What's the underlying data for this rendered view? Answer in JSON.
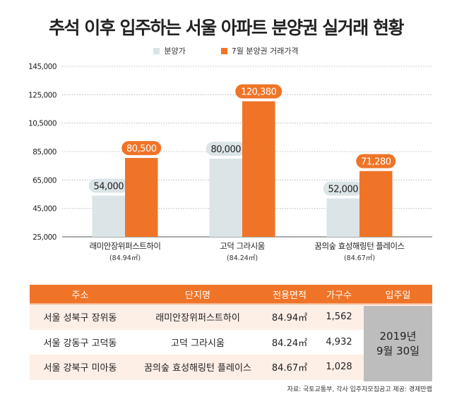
{
  "title": "추석 이후 입주하는 서울 아파트 분양권 실거래 현황",
  "chart_data": {
    "type": "bar",
    "title": "추석 이후 입주하는 서울 아파트 분양권 실거래 현황",
    "categories": [
      "래미안장위퍼스트하이",
      "고덕 그라시움",
      "꿈의숲 효성해링턴 플레이스"
    ],
    "category_sub": [
      "(84.94㎡)",
      "(84.24㎡)",
      "(84.67㎡)"
    ],
    "series": [
      {
        "name": "분양가",
        "values": [
          54000,
          80000,
          52000
        ],
        "labels": [
          "54,000",
          "80,000",
          "52,000"
        ],
        "color": "#dbe4e6"
      },
      {
        "name": "7월 분양권 거래가격",
        "values": [
          80500,
          120380,
          71280
        ],
        "labels": [
          "80,500",
          "120,380",
          "71,280"
        ],
        "color": "#f07427"
      }
    ],
    "yticks": [
      25000,
      45000,
      65000,
      85000,
      105000,
      125000,
      145000
    ],
    "ytick_labels": [
      "25,000",
      "45,000",
      "65,000",
      "85,000",
      "10,5000",
      "125,000",
      "145,000"
    ],
    "ylim": [
      25000,
      145000
    ],
    "grid": true,
    "legend": "top-center"
  },
  "table": {
    "headers": [
      "주소",
      "단지명",
      "전용면적",
      "가구수",
      "입주일"
    ],
    "rows": [
      [
        "서울 성북구 장위동",
        "래미안장위퍼스트하이",
        "84.94㎡",
        "1,562"
      ],
      [
        "서울 강동구 고덕동",
        "고덕 그라시움",
        "84.24㎡",
        "4,932"
      ],
      [
        "서울 강북구 미아동",
        "꿈의숲 효성해링턴 플레이스",
        "84.67㎡",
        "1,028"
      ]
    ],
    "move_in_line1": "2019년",
    "move_in_line2": "9월 30일"
  },
  "source": "자료: 국토교통부, 각사 입주자모집공고 제공: 경제만랩"
}
